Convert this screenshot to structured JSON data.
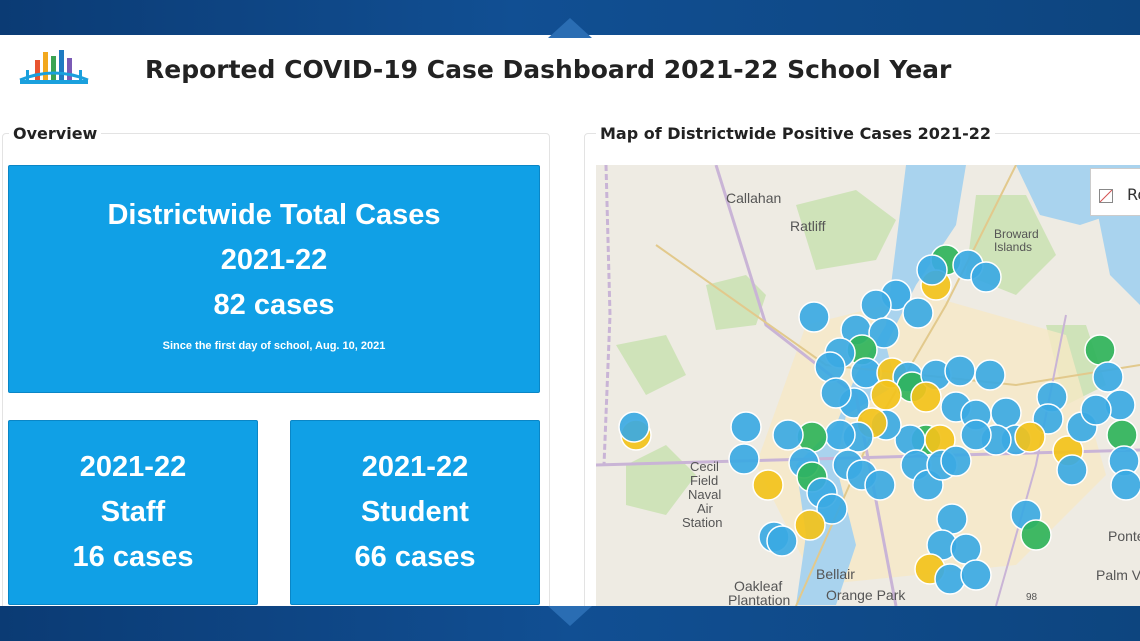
{
  "header": {
    "title": "Reported COVID-19 Case Dashboard 2021-22 School Year",
    "logo_icon": "bar-chart-bridge-icon"
  },
  "overview": {
    "legend": "Overview",
    "total": {
      "line1": "Districtwide Total Cases",
      "line2": "2021-22",
      "line3": "82 cases",
      "note": "Since the first day of school, Aug. 10, 2021"
    },
    "staff": {
      "line1": "2021-22",
      "line2": "Staff",
      "line3": "16 cases"
    },
    "student": {
      "line1": "2021-22",
      "line2": "Student",
      "line3": "66 cases"
    }
  },
  "map": {
    "legend": "Map of Districtwide Positive Cases 2021-22",
    "legend_text": "Ro",
    "places": [
      "Callahan",
      "Ratliff",
      "Broward",
      "Islands",
      "Cecil",
      "Field",
      "Naval",
      "Air",
      "Station",
      "Oakleaf",
      "Plantation",
      "Bellair",
      "Orange Park",
      "Ponte",
      "Palm V",
      "98"
    ]
  },
  "colors": {
    "card_blue": "#10a0e6",
    "marker_blue": "#3ba9e3",
    "marker_green": "#2fb35a",
    "marker_yellow": "#f2c21b"
  }
}
